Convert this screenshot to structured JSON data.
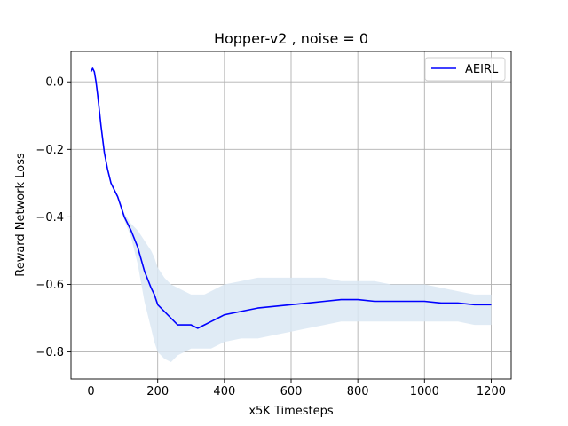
{
  "chart_data": {
    "type": "line",
    "title": "Hopper-v2 , noise = 0",
    "xlabel": "x5K Timesteps",
    "ylabel": "Reward Network Loss",
    "xlim": [
      -60,
      1260
    ],
    "ylim": [
      -0.88,
      0.09
    ],
    "xticks": [
      0,
      200,
      400,
      600,
      800,
      1000,
      1200
    ],
    "yticks": [
      0.0,
      -0.2,
      -0.4,
      -0.6,
      -0.8
    ],
    "xtick_labels": [
      "0",
      "200",
      "400",
      "600",
      "800",
      "1000",
      "1200"
    ],
    "ytick_labels": [
      "0.0",
      "−0.2",
      "−0.4",
      "−0.6",
      "−0.8"
    ],
    "grid": true,
    "legend_position": "top-right",
    "series": [
      {
        "name": "AEIRL",
        "color": "#0000ff",
        "band_color": "#dbe7f3",
        "x": [
          0,
          5,
          10,
          15,
          20,
          30,
          40,
          50,
          60,
          70,
          80,
          90,
          100,
          120,
          140,
          160,
          180,
          190,
          200,
          220,
          240,
          260,
          280,
          300,
          320,
          340,
          360,
          380,
          400,
          450,
          500,
          550,
          600,
          650,
          700,
          750,
          800,
          850,
          900,
          950,
          1000,
          1050,
          1100,
          1150,
          1200
        ],
        "y": [
          0.03,
          0.04,
          0.03,
          0.0,
          -0.04,
          -0.13,
          -0.21,
          -0.26,
          -0.3,
          -0.32,
          -0.34,
          -0.37,
          -0.4,
          -0.44,
          -0.49,
          -0.56,
          -0.61,
          -0.63,
          -0.66,
          -0.68,
          -0.7,
          -0.72,
          -0.72,
          -0.72,
          -0.73,
          -0.72,
          -0.71,
          -0.7,
          -0.69,
          -0.68,
          -0.67,
          -0.665,
          -0.66,
          -0.655,
          -0.65,
          -0.645,
          -0.645,
          -0.65,
          -0.65,
          -0.65,
          -0.65,
          -0.655,
          -0.655,
          -0.66,
          -0.66
        ],
        "upper": [
          0.03,
          0.04,
          0.03,
          0.0,
          -0.04,
          -0.13,
          -0.21,
          -0.26,
          -0.3,
          -0.32,
          -0.34,
          -0.36,
          -0.39,
          -0.42,
          -0.44,
          -0.47,
          -0.5,
          -0.52,
          -0.55,
          -0.58,
          -0.6,
          -0.61,
          -0.62,
          -0.63,
          -0.63,
          -0.63,
          -0.62,
          -0.61,
          -0.6,
          -0.59,
          -0.58,
          -0.58,
          -0.58,
          -0.58,
          -0.58,
          -0.59,
          -0.59,
          -0.59,
          -0.6,
          -0.6,
          -0.6,
          -0.61,
          -0.62,
          -0.63,
          -0.63
        ],
        "lower": [
          0.03,
          0.04,
          0.03,
          0.0,
          -0.04,
          -0.13,
          -0.21,
          -0.26,
          -0.3,
          -0.32,
          -0.34,
          -0.38,
          -0.41,
          -0.46,
          -0.54,
          -0.65,
          -0.73,
          -0.77,
          -0.8,
          -0.82,
          -0.83,
          -0.81,
          -0.8,
          -0.79,
          -0.79,
          -0.79,
          -0.79,
          -0.78,
          -0.77,
          -0.76,
          -0.76,
          -0.75,
          -0.74,
          -0.73,
          -0.72,
          -0.71,
          -0.71,
          -0.71,
          -0.71,
          -0.71,
          -0.71,
          -0.71,
          -0.71,
          -0.72,
          -0.72
        ]
      }
    ]
  }
}
